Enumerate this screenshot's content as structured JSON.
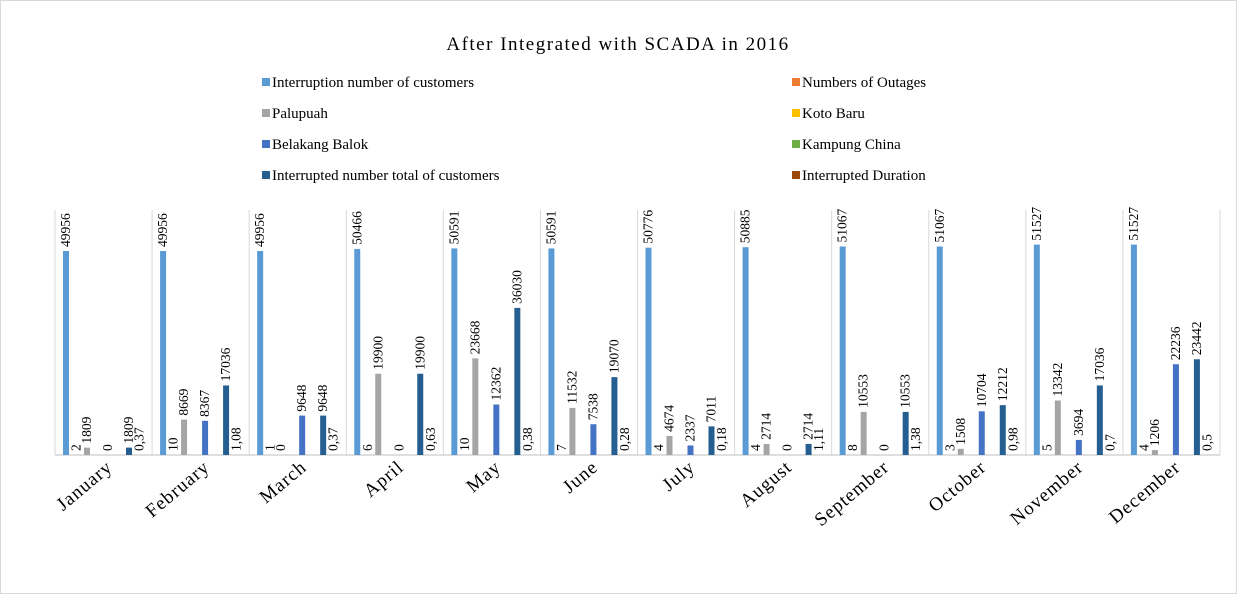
{
  "chart_data": {
    "type": "bar",
    "title": "After Integrated with SCADA in 2016",
    "categories": [
      "January",
      "February",
      "March",
      "April",
      "May",
      "June",
      "July",
      "August",
      "September",
      "October",
      "November",
      "December"
    ],
    "ylim": [
      0,
      60000
    ],
    "series": [
      {
        "name": "Interruption number of customers",
        "color": "#5b9bd5",
        "values": [
          49956,
          49956,
          49956,
          50466,
          50591,
          50591,
          50776,
          50885,
          51067,
          51067,
          51527,
          51527
        ]
      },
      {
        "name": "Numbers of Outages",
        "color": "#ed7d31",
        "values": [
          2,
          10,
          1,
          6,
          10,
          7,
          4,
          4,
          8,
          3,
          5,
          4
        ]
      },
      {
        "name": "Palupuah",
        "color": "#a5a5a5",
        "values": [
          1809,
          8669,
          0,
          19900,
          23668,
          11532,
          4674,
          2714,
          10553,
          1508,
          13342,
          1206
        ]
      },
      {
        "name": "Koto Baru",
        "color": "#ffc000",
        "values": [
          null,
          null,
          null,
          null,
          null,
          null,
          null,
          null,
          null,
          null,
          null,
          null
        ]
      },
      {
        "name": "Belakang Balok",
        "color": "#4472c4",
        "values": [
          0,
          8367,
          9648,
          0,
          12362,
          7538,
          2337,
          0,
          0,
          10704,
          3694,
          22236
        ]
      },
      {
        "name": "Kampung China",
        "color": "#70ad47",
        "values": [
          null,
          null,
          null,
          null,
          null,
          null,
          null,
          null,
          null,
          null,
          null,
          null
        ]
      },
      {
        "name": "Interrupted number total of customers",
        "color": "#255e91",
        "values": [
          1809,
          17036,
          9648,
          19900,
          36030,
          19070,
          7011,
          2714,
          10553,
          12212,
          17036,
          23442
        ]
      },
      {
        "name": "Interrupted Duration",
        "color": "#9e480e",
        "values": [
          0.37,
          1.08,
          0.37,
          0.63,
          0.38,
          0.28,
          0.18,
          1.11,
          1.38,
          0.98,
          0.7,
          0.5
        ],
        "value_labels": [
          "0,37",
          "1,08",
          "0,37",
          "0,63",
          "0,38",
          "0,28",
          "0,18",
          "1,11",
          "1,38",
          "0,98",
          "0,7",
          "0,5"
        ]
      }
    ]
  }
}
